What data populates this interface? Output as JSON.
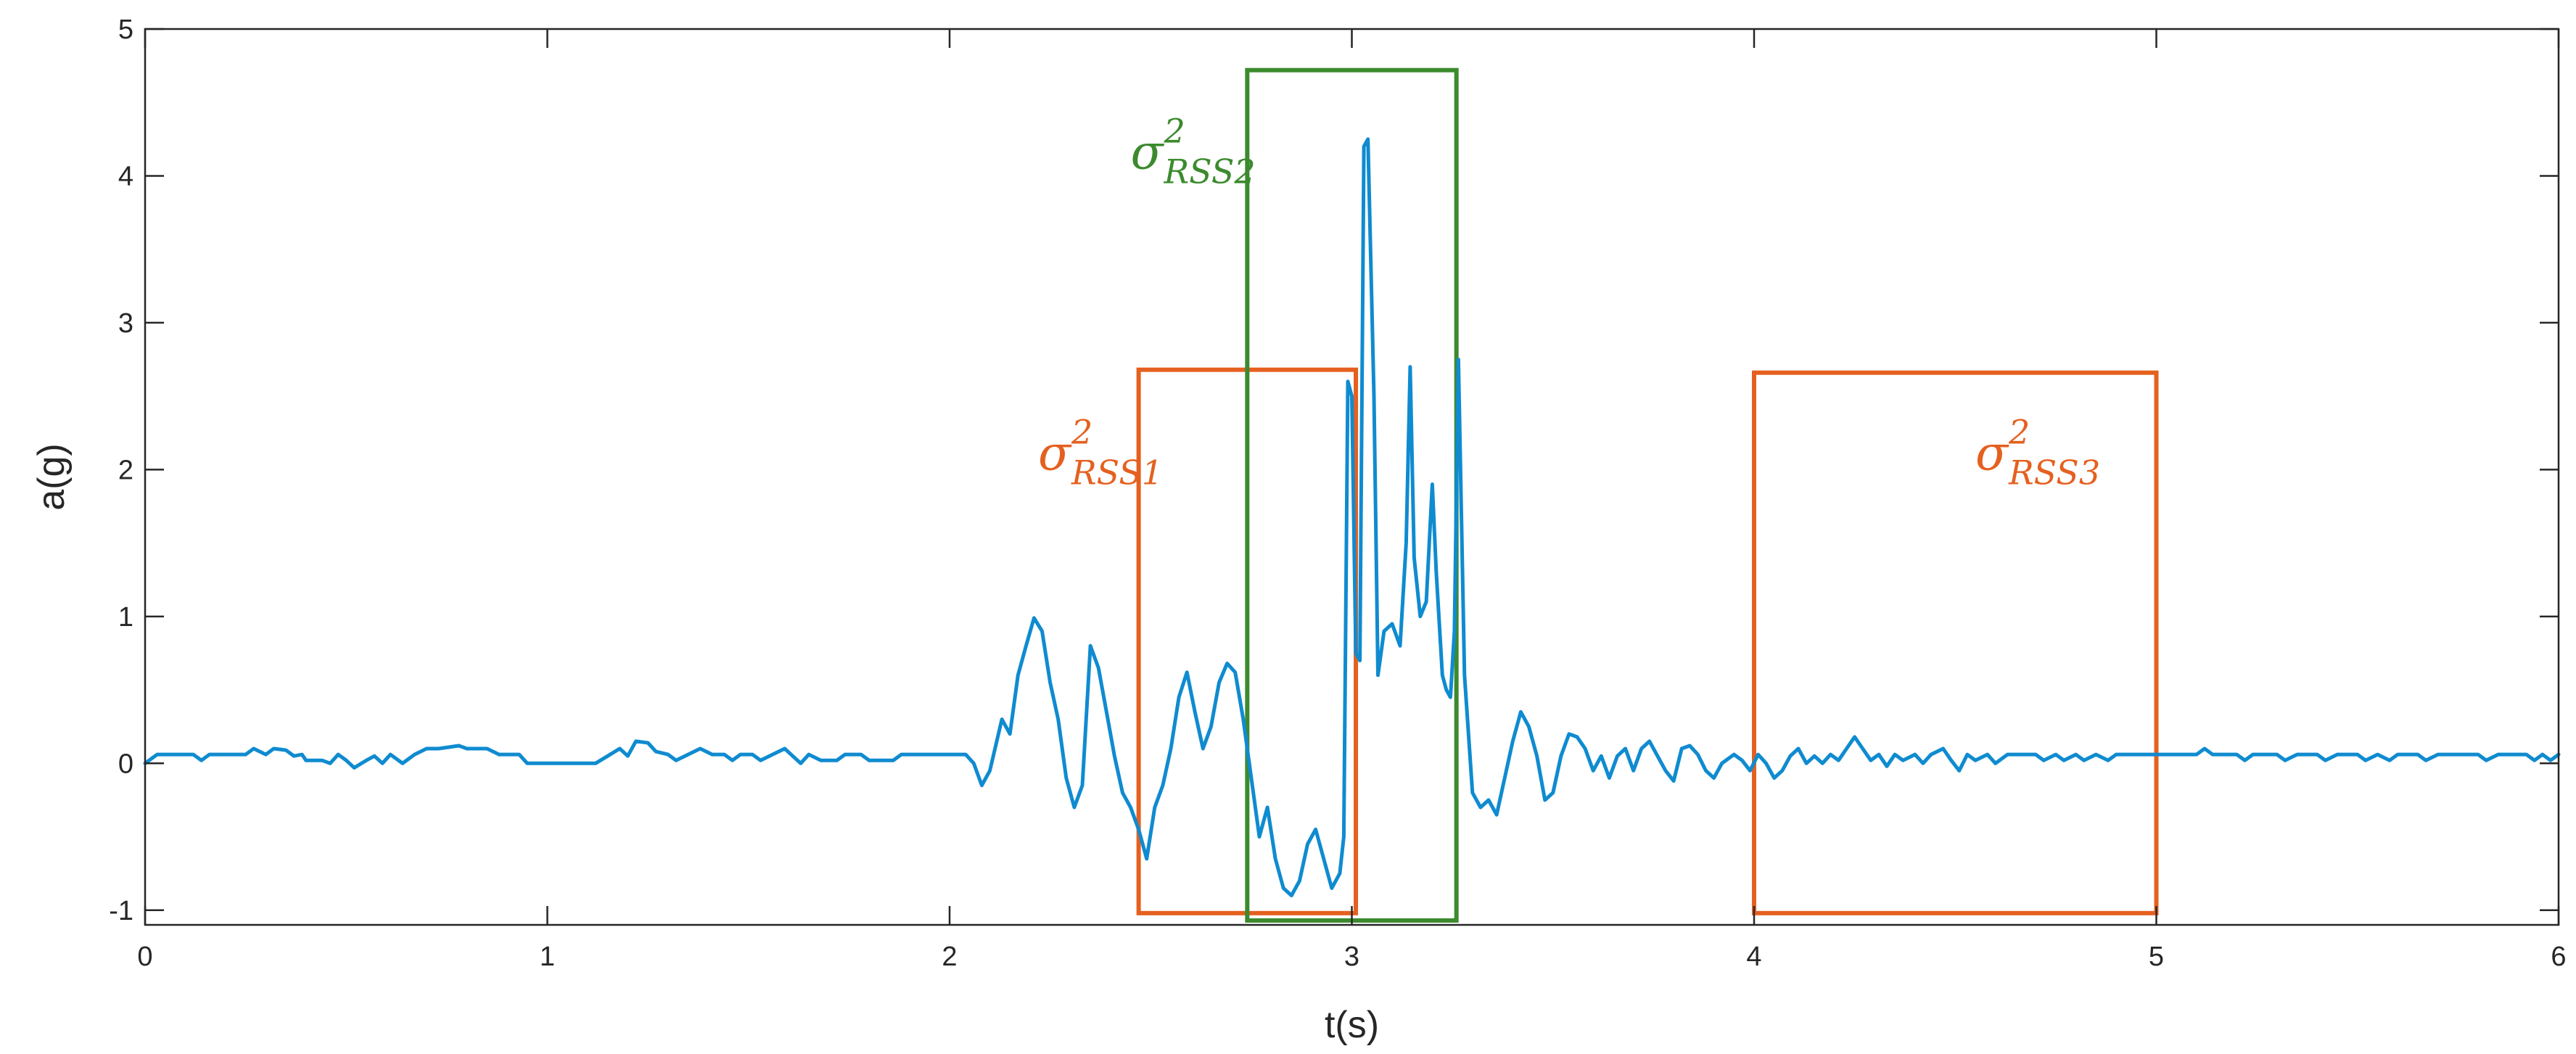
{
  "chart_data": {
    "type": "line",
    "title": "",
    "xlabel": "t(s)",
    "ylabel": "a(g)",
    "xlim": [
      0,
      6
    ],
    "ylim": [
      -1.1,
      5
    ],
    "xticks": [
      "0",
      "1",
      "2",
      "3",
      "4",
      "5",
      "6"
    ],
    "yticks": [
      "-1",
      "0",
      "1",
      "2",
      "3",
      "4",
      "5"
    ],
    "grid": false,
    "legend": "none",
    "colors": {
      "signal": "#0F8BD0",
      "orange": "#E5601F",
      "green": "#3C8A2E",
      "axis": "#262626"
    },
    "series": [
      {
        "color": "#0F8BD0",
        "points": [
          [
            0,
            0.0
          ],
          [
            0.03,
            0.06
          ],
          [
            0.12,
            0.06
          ],
          [
            0.14,
            0.02
          ],
          [
            0.16,
            0.06
          ],
          [
            0.25,
            0.06
          ],
          [
            0.27,
            0.1
          ],
          [
            0.3,
            0.06
          ],
          [
            0.32,
            0.1
          ],
          [
            0.35,
            0.09
          ],
          [
            0.37,
            0.05
          ],
          [
            0.39,
            0.06
          ],
          [
            0.4,
            0.02
          ],
          [
            0.44,
            0.02
          ],
          [
            0.46,
            0.0
          ],
          [
            0.48,
            0.06
          ],
          [
            0.5,
            0.02
          ],
          [
            0.52,
            -0.03
          ],
          [
            0.55,
            0.02
          ],
          [
            0.57,
            0.05
          ],
          [
            0.59,
            0.0
          ],
          [
            0.61,
            0.06
          ],
          [
            0.64,
            0.0
          ],
          [
            0.67,
            0.06
          ],
          [
            0.7,
            0.1
          ],
          [
            0.73,
            0.1
          ],
          [
            0.78,
            0.12
          ],
          [
            0.8,
            0.1
          ],
          [
            0.85,
            0.1
          ],
          [
            0.88,
            0.06
          ],
          [
            0.93,
            0.06
          ],
          [
            0.95,
            0.0
          ],
          [
            1.12,
            0.0
          ],
          [
            1.15,
            0.05
          ],
          [
            1.18,
            0.1
          ],
          [
            1.2,
            0.05
          ],
          [
            1.22,
            0.15
          ],
          [
            1.25,
            0.14
          ],
          [
            1.27,
            0.08
          ],
          [
            1.3,
            0.06
          ],
          [
            1.32,
            0.02
          ],
          [
            1.35,
            0.06
          ],
          [
            1.38,
            0.1
          ],
          [
            1.41,
            0.06
          ],
          [
            1.44,
            0.06
          ],
          [
            1.46,
            0.02
          ],
          [
            1.48,
            0.06
          ],
          [
            1.51,
            0.06
          ],
          [
            1.53,
            0.02
          ],
          [
            1.56,
            0.06
          ],
          [
            1.59,
            0.1
          ],
          [
            1.61,
            0.05
          ],
          [
            1.63,
            0.0
          ],
          [
            1.65,
            0.06
          ],
          [
            1.68,
            0.02
          ],
          [
            1.72,
            0.02
          ],
          [
            1.74,
            0.06
          ],
          [
            1.78,
            0.06
          ],
          [
            1.8,
            0.02
          ],
          [
            1.86,
            0.02
          ],
          [
            1.88,
            0.06
          ],
          [
            2.04,
            0.06
          ],
          [
            2.06,
            0.0
          ],
          [
            2.08,
            -0.15
          ],
          [
            2.1,
            -0.05
          ],
          [
            2.13,
            0.3
          ],
          [
            2.15,
            0.2
          ],
          [
            2.17,
            0.6
          ],
          [
            2.19,
            0.8
          ],
          [
            2.21,
            0.99
          ],
          [
            2.23,
            0.9
          ],
          [
            2.25,
            0.55
          ],
          [
            2.27,
            0.3
          ],
          [
            2.29,
            -0.1
          ],
          [
            2.31,
            -0.3
          ],
          [
            2.33,
            -0.15
          ],
          [
            2.35,
            0.8
          ],
          [
            2.37,
            0.65
          ],
          [
            2.39,
            0.35
          ],
          [
            2.41,
            0.05
          ],
          [
            2.43,
            -0.2
          ],
          [
            2.45,
            -0.3
          ],
          [
            2.47,
            -0.45
          ],
          [
            2.49,
            -0.65
          ],
          [
            2.51,
            -0.3
          ],
          [
            2.53,
            -0.15
          ],
          [
            2.55,
            0.1
          ],
          [
            2.57,
            0.45
          ],
          [
            2.59,
            0.62
          ],
          [
            2.61,
            0.35
          ],
          [
            2.63,
            0.1
          ],
          [
            2.65,
            0.25
          ],
          [
            2.67,
            0.55
          ],
          [
            2.69,
            0.68
          ],
          [
            2.71,
            0.62
          ],
          [
            2.73,
            0.3
          ],
          [
            2.75,
            -0.1
          ],
          [
            2.77,
            -0.5
          ],
          [
            2.79,
            -0.3
          ],
          [
            2.81,
            -0.65
          ],
          [
            2.83,
            -0.85
          ],
          [
            2.85,
            -0.9
          ],
          [
            2.87,
            -0.8
          ],
          [
            2.89,
            -0.55
          ],
          [
            2.91,
            -0.45
          ],
          [
            2.93,
            -0.65
          ],
          [
            2.95,
            -0.85
          ],
          [
            2.97,
            -0.75
          ],
          [
            2.98,
            -0.5
          ],
          [
            2.99,
            2.6
          ],
          [
            3.0,
            2.5
          ],
          [
            3.01,
            0.75
          ],
          [
            3.02,
            0.7
          ],
          [
            3.03,
            4.2
          ],
          [
            3.04,
            4.25
          ],
          [
            3.055,
            2.5
          ],
          [
            3.065,
            0.6
          ],
          [
            3.08,
            0.9
          ],
          [
            3.1,
            0.95
          ],
          [
            3.12,
            0.8
          ],
          [
            3.135,
            1.5
          ],
          [
            3.145,
            2.7
          ],
          [
            3.155,
            1.4
          ],
          [
            3.17,
            1.0
          ],
          [
            3.185,
            1.1
          ],
          [
            3.2,
            1.9
          ],
          [
            3.21,
            1.3
          ],
          [
            3.225,
            0.6
          ],
          [
            3.235,
            0.5
          ],
          [
            3.245,
            0.45
          ],
          [
            3.255,
            0.9
          ],
          [
            3.265,
            2.75
          ],
          [
            3.28,
            0.6
          ],
          [
            3.3,
            -0.2
          ],
          [
            3.32,
            -0.3
          ],
          [
            3.34,
            -0.25
          ],
          [
            3.36,
            -0.35
          ],
          [
            3.38,
            -0.1
          ],
          [
            3.4,
            0.15
          ],
          [
            3.42,
            0.35
          ],
          [
            3.44,
            0.25
          ],
          [
            3.46,
            0.05
          ],
          [
            3.48,
            -0.25
          ],
          [
            3.5,
            -0.2
          ],
          [
            3.52,
            0.05
          ],
          [
            3.54,
            0.2
          ],
          [
            3.56,
            0.18
          ],
          [
            3.58,
            0.1
          ],
          [
            3.6,
            -0.05
          ],
          [
            3.62,
            0.05
          ],
          [
            3.64,
            -0.1
          ],
          [
            3.66,
            0.05
          ],
          [
            3.68,
            0.1
          ],
          [
            3.7,
            -0.05
          ],
          [
            3.72,
            0.1
          ],
          [
            3.74,
            0.15
          ],
          [
            3.76,
            0.05
          ],
          [
            3.78,
            -0.05
          ],
          [
            3.8,
            -0.12
          ],
          [
            3.82,
            0.1
          ],
          [
            3.84,
            0.12
          ],
          [
            3.86,
            0.06
          ],
          [
            3.88,
            -0.05
          ],
          [
            3.9,
            -0.1
          ],
          [
            3.92,
            0.0
          ],
          [
            3.95,
            0.06
          ],
          [
            3.97,
            0.02
          ],
          [
            3.99,
            -0.05
          ],
          [
            4.01,
            0.06
          ],
          [
            4.03,
            0.0
          ],
          [
            4.05,
            -0.1
          ],
          [
            4.07,
            -0.05
          ],
          [
            4.09,
            0.05
          ],
          [
            4.11,
            0.1
          ],
          [
            4.13,
            0.0
          ],
          [
            4.15,
            0.05
          ],
          [
            4.17,
            0.0
          ],
          [
            4.19,
            0.06
          ],
          [
            4.21,
            0.02
          ],
          [
            4.23,
            0.1
          ],
          [
            4.25,
            0.18
          ],
          [
            4.27,
            0.1
          ],
          [
            4.29,
            0.02
          ],
          [
            4.31,
            0.06
          ],
          [
            4.33,
            -0.02
          ],
          [
            4.35,
            0.06
          ],
          [
            4.37,
            0.02
          ],
          [
            4.4,
            0.06
          ],
          [
            4.42,
            0.0
          ],
          [
            4.44,
            0.06
          ],
          [
            4.47,
            0.1
          ],
          [
            4.49,
            0.02
          ],
          [
            4.51,
            -0.05
          ],
          [
            4.53,
            0.06
          ],
          [
            4.55,
            0.02
          ],
          [
            4.58,
            0.06
          ],
          [
            4.6,
            0.0
          ],
          [
            4.63,
            0.06
          ],
          [
            4.7,
            0.06
          ],
          [
            4.72,
            0.02
          ],
          [
            4.75,
            0.06
          ],
          [
            4.77,
            0.02
          ],
          [
            4.8,
            0.06
          ],
          [
            4.82,
            0.02
          ],
          [
            4.85,
            0.06
          ],
          [
            4.88,
            0.02
          ],
          [
            4.9,
            0.06
          ],
          [
            5.1,
            0.06
          ],
          [
            5.12,
            0.1
          ],
          [
            5.14,
            0.06
          ],
          [
            5.2,
            0.06
          ],
          [
            5.22,
            0.02
          ],
          [
            5.24,
            0.06
          ],
          [
            5.3,
            0.06
          ],
          [
            5.32,
            0.02
          ],
          [
            5.35,
            0.06
          ],
          [
            5.4,
            0.06
          ],
          [
            5.42,
            0.02
          ],
          [
            5.45,
            0.06
          ],
          [
            5.5,
            0.06
          ],
          [
            5.52,
            0.02
          ],
          [
            5.55,
            0.06
          ],
          [
            5.58,
            0.02
          ],
          [
            5.6,
            0.06
          ],
          [
            5.65,
            0.06
          ],
          [
            5.67,
            0.02
          ],
          [
            5.7,
            0.06
          ],
          [
            5.8,
            0.06
          ],
          [
            5.82,
            0.02
          ],
          [
            5.85,
            0.06
          ],
          [
            5.92,
            0.06
          ],
          [
            5.94,
            0.02
          ],
          [
            5.96,
            0.06
          ],
          [
            5.98,
            0.02
          ],
          [
            6.0,
            0.06
          ]
        ]
      }
    ],
    "annotations": [
      {
        "base": "σ",
        "sup": "2",
        "sub": "RSS1",
        "color": "#E5601F",
        "x": 2.22,
        "y": 2.0
      },
      {
        "base": "σ",
        "sup": "2",
        "sub": "RSS2",
        "color": "#3C8A2E",
        "x": 2.45,
        "y": 4.05
      },
      {
        "base": "σ",
        "sup": "2",
        "sub": "RSS3",
        "color": "#E5601F",
        "x": 4.55,
        "y": 2.0
      }
    ],
    "windows": [
      {
        "x0": 2.47,
        "x1": 3.01,
        "y0": -1.02,
        "y1": 2.68,
        "color": "#E5601F"
      },
      {
        "x0": 2.74,
        "x1": 3.26,
        "y0": -1.07,
        "y1": 4.72,
        "color": "#3C8A2E"
      },
      {
        "x0": 4.0,
        "x1": 5.0,
        "y0": -1.02,
        "y1": 2.66,
        "color": "#E5601F"
      }
    ]
  }
}
